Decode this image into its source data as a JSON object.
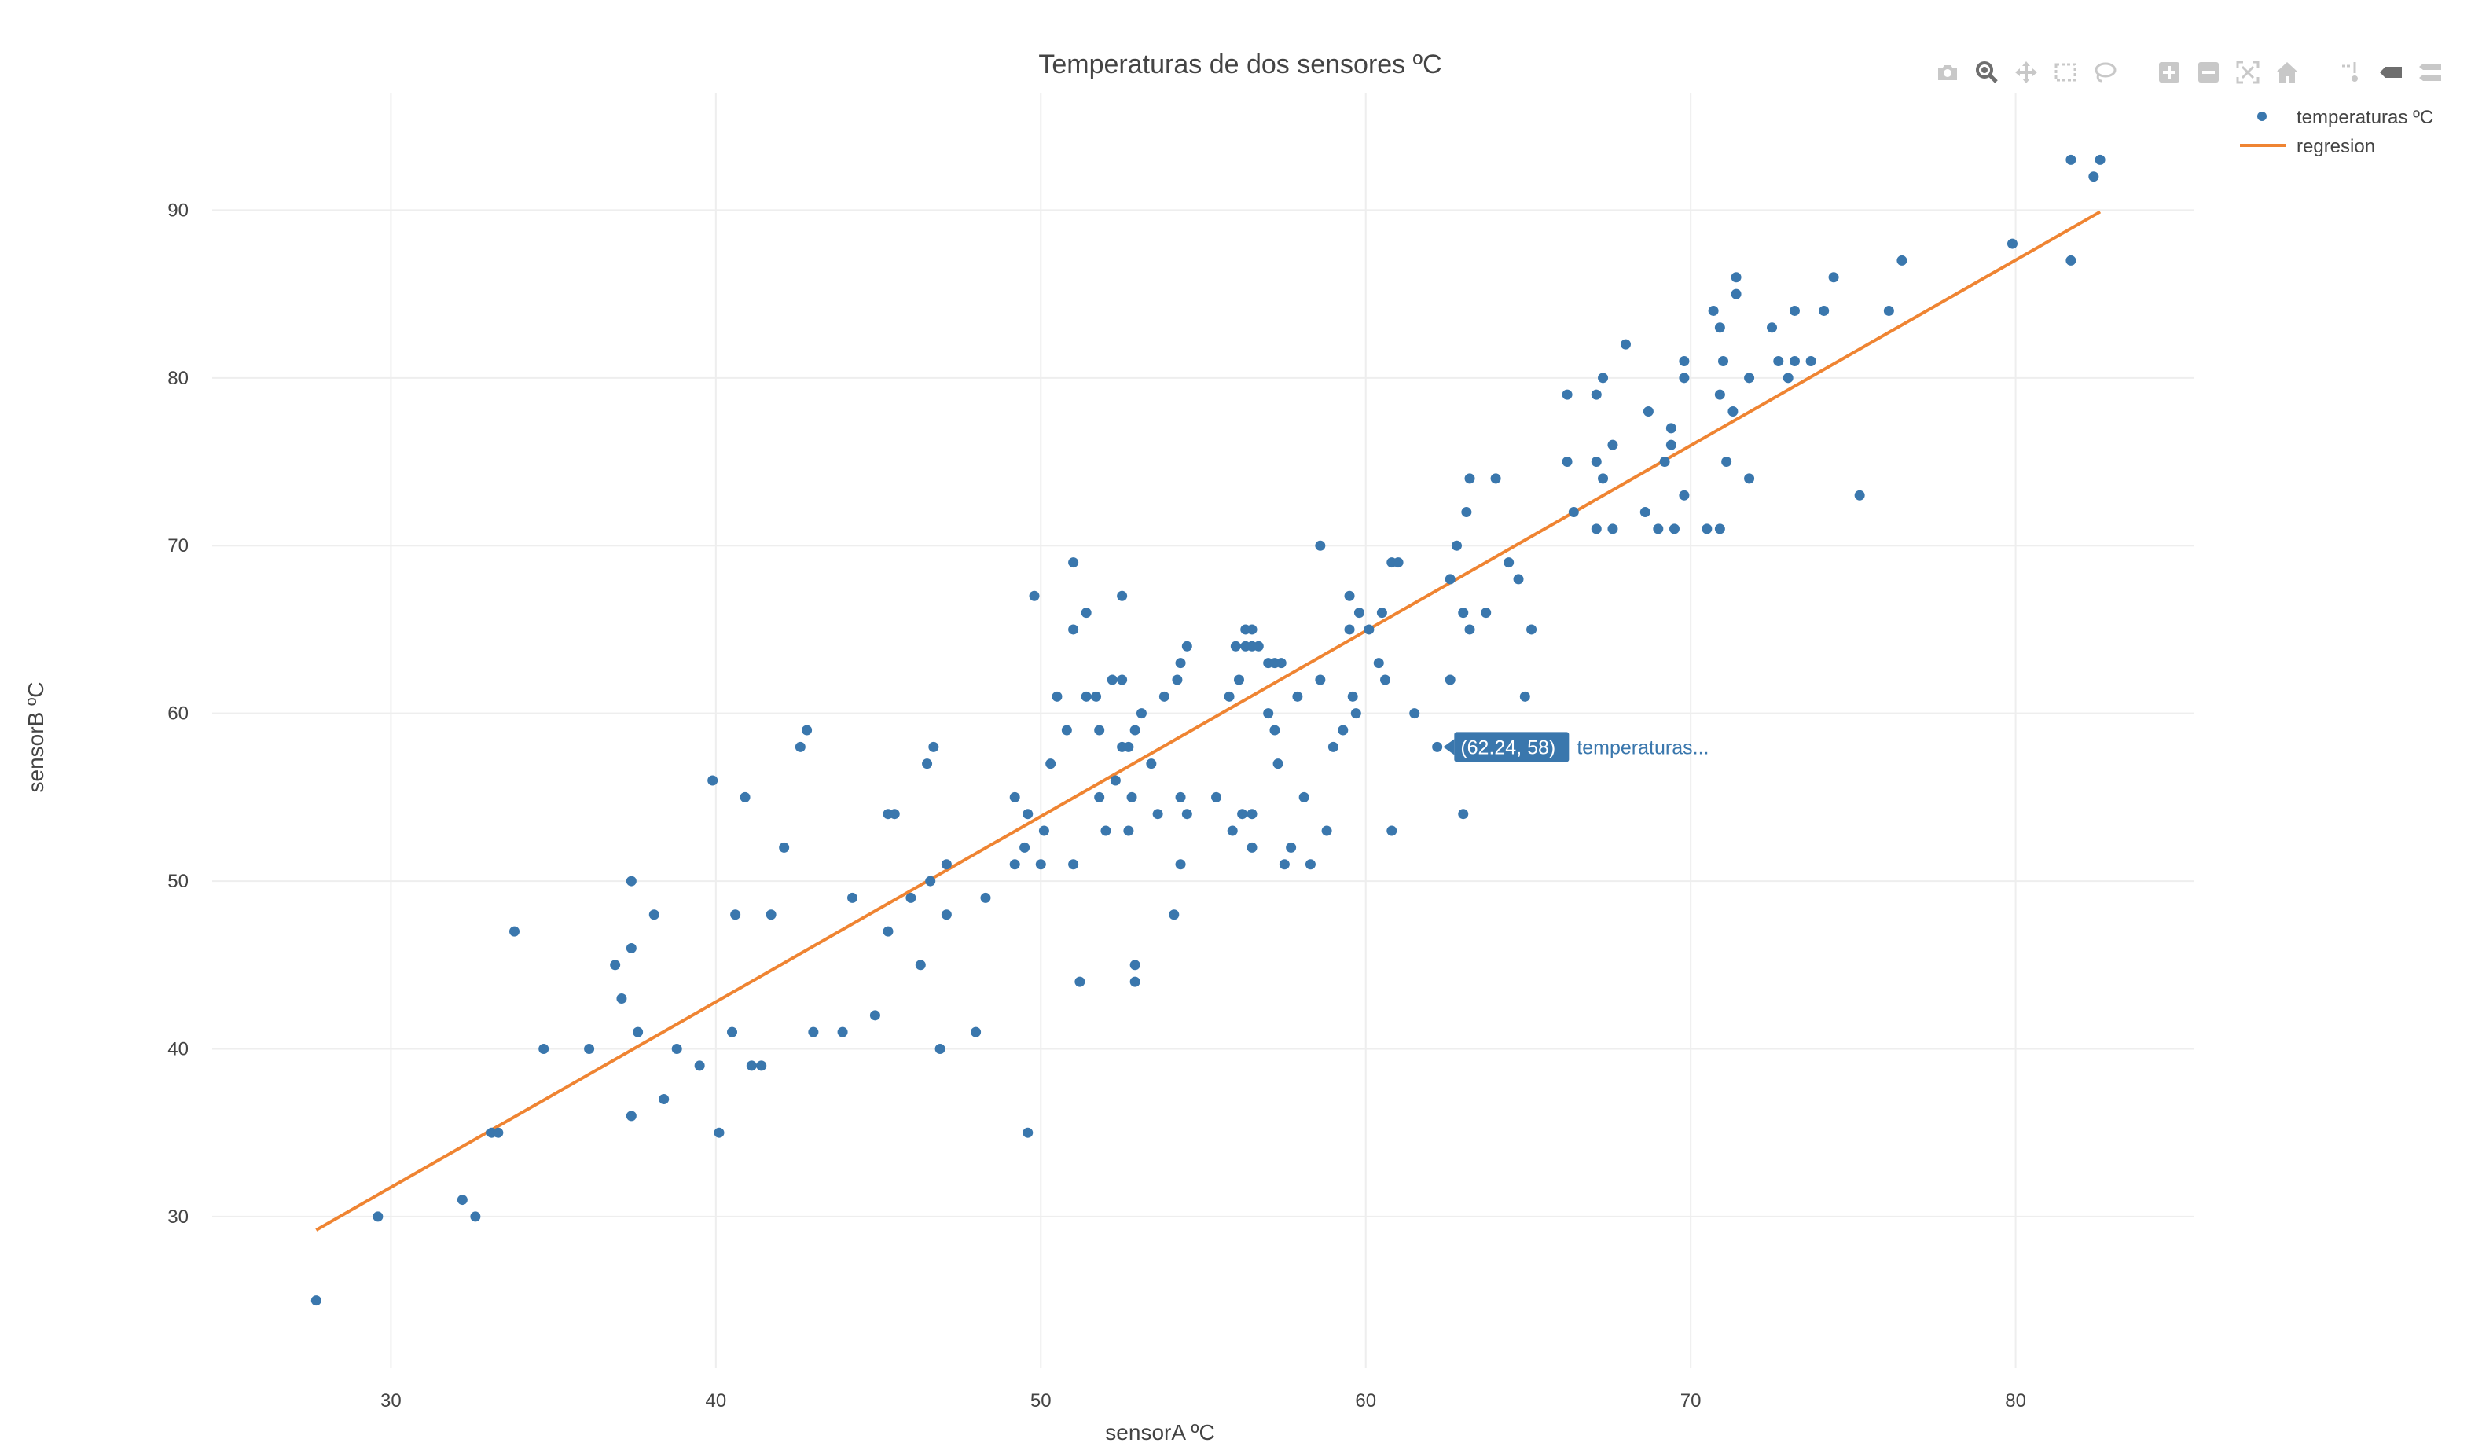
{
  "chart_data": {
    "type": "scatter",
    "title": "Temperaturas de dos sensores ºC",
    "xlabel": "sensorA ºC",
    "ylabel": "sensorB ºC",
    "xlim": [
      24.5,
      85.5
    ],
    "ylim": [
      21,
      97
    ],
    "xticks": [
      30,
      40,
      50,
      60,
      70,
      80
    ],
    "yticks": [
      30,
      40,
      50,
      60,
      70,
      80,
      90
    ],
    "grid": true,
    "legend_position": "top-right",
    "series": [
      {
        "name": "temperaturas ºC",
        "kind": "markers",
        "color": "#3a77ad",
        "points": [
          [
            27.7,
            25
          ],
          [
            29.6,
            30
          ],
          [
            32.2,
            31
          ],
          [
            32.6,
            30
          ],
          [
            33.1,
            35
          ],
          [
            33.3,
            35
          ],
          [
            33.8,
            47
          ],
          [
            34.7,
            40
          ],
          [
            36.1,
            40
          ],
          [
            36.9,
            45
          ],
          [
            37.1,
            43
          ],
          [
            37.4,
            46
          ],
          [
            37.4,
            50
          ],
          [
            37.6,
            41
          ],
          [
            37.4,
            36
          ],
          [
            38.1,
            48
          ],
          [
            38.4,
            37
          ],
          [
            38.8,
            40
          ],
          [
            39.5,
            39
          ],
          [
            39.9,
            56
          ],
          [
            40.1,
            35
          ],
          [
            40.5,
            41
          ],
          [
            40.6,
            48
          ],
          [
            40.9,
            55
          ],
          [
            41.1,
            39
          ],
          [
            41.4,
            39
          ],
          [
            41.7,
            48
          ],
          [
            42.1,
            52
          ],
          [
            42.6,
            58
          ],
          [
            42.8,
            59
          ],
          [
            43.0,
            41
          ],
          [
            43.9,
            41
          ],
          [
            44.2,
            49
          ],
          [
            44.9,
            42
          ],
          [
            45.3,
            47
          ],
          [
            45.3,
            54
          ],
          [
            45.5,
            54
          ],
          [
            46.0,
            49
          ],
          [
            46.3,
            45
          ],
          [
            46.5,
            57
          ],
          [
            46.6,
            50
          ],
          [
            46.7,
            58
          ],
          [
            46.9,
            40
          ],
          [
            47.1,
            51
          ],
          [
            47.1,
            48
          ],
          [
            48.0,
            41
          ],
          [
            48.3,
            49
          ],
          [
            49.2,
            55
          ],
          [
            49.2,
            51
          ],
          [
            49.5,
            52
          ],
          [
            49.6,
            54
          ],
          [
            49.6,
            35
          ],
          [
            49.8,
            67
          ],
          [
            50.0,
            51
          ],
          [
            50.1,
            53
          ],
          [
            50.3,
            57
          ],
          [
            50.5,
            61
          ],
          [
            50.8,
            59
          ],
          [
            51.0,
            69
          ],
          [
            51.0,
            65
          ],
          [
            51.0,
            51
          ],
          [
            51.2,
            44
          ],
          [
            51.4,
            66
          ],
          [
            51.4,
            61
          ],
          [
            51.7,
            61
          ],
          [
            51.8,
            59
          ],
          [
            51.8,
            55
          ],
          [
            52.0,
            53
          ],
          [
            52.2,
            62
          ],
          [
            52.3,
            56
          ],
          [
            52.5,
            62
          ],
          [
            52.5,
            67
          ],
          [
            52.5,
            58
          ],
          [
            52.7,
            53
          ],
          [
            52.7,
            58
          ],
          [
            52.8,
            55
          ],
          [
            52.9,
            45
          ],
          [
            52.9,
            44
          ],
          [
            52.9,
            59
          ],
          [
            53.1,
            60
          ],
          [
            53.4,
            57
          ],
          [
            53.6,
            54
          ],
          [
            53.8,
            61
          ],
          [
            54.1,
            48
          ],
          [
            54.2,
            62
          ],
          [
            54.3,
            63
          ],
          [
            54.3,
            55
          ],
          [
            54.3,
            51
          ],
          [
            54.5,
            64
          ],
          [
            54.5,
            54
          ],
          [
            55.4,
            55
          ],
          [
            55.8,
            61
          ],
          [
            55.9,
            53
          ],
          [
            56.0,
            64
          ],
          [
            56.1,
            62
          ],
          [
            56.2,
            54
          ],
          [
            56.3,
            64
          ],
          [
            56.3,
            65
          ],
          [
            56.5,
            64
          ],
          [
            56.5,
            65
          ],
          [
            56.5,
            54
          ],
          [
            56.5,
            52
          ],
          [
            56.7,
            64
          ],
          [
            57.0,
            63
          ],
          [
            57.0,
            60
          ],
          [
            57.2,
            59
          ],
          [
            57.2,
            63
          ],
          [
            57.3,
            57
          ],
          [
            57.4,
            63
          ],
          [
            57.5,
            51
          ],
          [
            57.7,
            52
          ],
          [
            57.9,
            61
          ],
          [
            58.1,
            55
          ],
          [
            58.3,
            51
          ],
          [
            58.6,
            62
          ],
          [
            58.6,
            70
          ],
          [
            58.8,
            53
          ],
          [
            59.0,
            58
          ],
          [
            59.3,
            59
          ],
          [
            59.5,
            67
          ],
          [
            59.5,
            65
          ],
          [
            59.6,
            61
          ],
          [
            59.7,
            60
          ],
          [
            59.8,
            66
          ],
          [
            60.1,
            65
          ],
          [
            60.4,
            63
          ],
          [
            60.5,
            66
          ],
          [
            60.6,
            62
          ],
          [
            60.8,
            69
          ],
          [
            60.8,
            53
          ],
          [
            61.0,
            69
          ],
          [
            61.5,
            60
          ],
          [
            62.2,
            58
          ],
          [
            62.6,
            62
          ],
          [
            62.6,
            68
          ],
          [
            62.8,
            70
          ],
          [
            63.0,
            54
          ],
          [
            63.0,
            66
          ],
          [
            63.1,
            72
          ],
          [
            63.2,
            74
          ],
          [
            63.2,
            65
          ],
          [
            63.7,
            66
          ],
          [
            64.0,
            74
          ],
          [
            64.4,
            69
          ],
          [
            64.7,
            68
          ],
          [
            64.9,
            61
          ],
          [
            65.1,
            65
          ],
          [
            66.2,
            75
          ],
          [
            66.2,
            79
          ],
          [
            66.4,
            72
          ],
          [
            67.1,
            79
          ],
          [
            67.1,
            75
          ],
          [
            67.1,
            71
          ],
          [
            67.3,
            74
          ],
          [
            67.3,
            80
          ],
          [
            67.6,
            76
          ],
          [
            67.6,
            71
          ],
          [
            68.0,
            82
          ],
          [
            68.6,
            72
          ],
          [
            68.7,
            78
          ],
          [
            69.0,
            71
          ],
          [
            69.2,
            75
          ],
          [
            69.4,
            77
          ],
          [
            69.4,
            76
          ],
          [
            69.5,
            71
          ],
          [
            69.8,
            80
          ],
          [
            69.8,
            81
          ],
          [
            69.8,
            73
          ],
          [
            70.5,
            71
          ],
          [
            70.7,
            84
          ],
          [
            70.9,
            71
          ],
          [
            70.9,
            79
          ],
          [
            70.9,
            83
          ],
          [
            71.0,
            81
          ],
          [
            71.1,
            75
          ],
          [
            71.3,
            78
          ],
          [
            71.4,
            86
          ],
          [
            71.4,
            85
          ],
          [
            71.8,
            80
          ],
          [
            71.8,
            74
          ],
          [
            72.5,
            83
          ],
          [
            72.7,
            81
          ],
          [
            73.0,
            80
          ],
          [
            73.2,
            84
          ],
          [
            73.2,
            81
          ],
          [
            73.7,
            81
          ],
          [
            74.1,
            84
          ],
          [
            74.4,
            86
          ],
          [
            75.2,
            73
          ],
          [
            76.1,
            84
          ],
          [
            76.5,
            87
          ],
          [
            79.9,
            88
          ],
          [
            81.7,
            93
          ],
          [
            81.7,
            87
          ],
          [
            82.4,
            92
          ],
          [
            82.6,
            93
          ]
        ]
      },
      {
        "name": "regresion",
        "kind": "line",
        "color": "#ef8432",
        "points": [
          [
            27.7,
            29.2
          ],
          [
            82.6,
            89.9
          ]
        ]
      }
    ],
    "hover": {
      "x": 62.24,
      "y": 58,
      "label": "(62.24, 58)",
      "series_label": "temperaturas..."
    }
  },
  "modebar": {
    "buttons": [
      {
        "name": "camera-icon",
        "color": "#c8c8c8"
      },
      {
        "name": "zoom-icon",
        "color": "#6e6e6e"
      },
      {
        "name": "pan-icon",
        "color": "#c8c8c8"
      },
      {
        "name": "box-select-icon",
        "color": "#c8c8c8"
      },
      {
        "name": "lasso-icon",
        "color": "#c8c8c8"
      },
      {
        "name": "zoom-in-icon",
        "color": "#c8c8c8"
      },
      {
        "name": "zoom-out-icon",
        "color": "#c8c8c8"
      },
      {
        "name": "autoscale-icon",
        "color": "#c8c8c8"
      },
      {
        "name": "reset-axes-icon",
        "color": "#c8c8c8"
      },
      {
        "name": "spike-lines-icon",
        "color": "#c8c8c8"
      },
      {
        "name": "hover-closest-icon",
        "color": "#6e6e6e"
      },
      {
        "name": "hover-compare-icon",
        "color": "#c8c8c8"
      },
      {
        "name": "plotly-logo-icon",
        "color": "#3f8fdc"
      }
    ]
  }
}
